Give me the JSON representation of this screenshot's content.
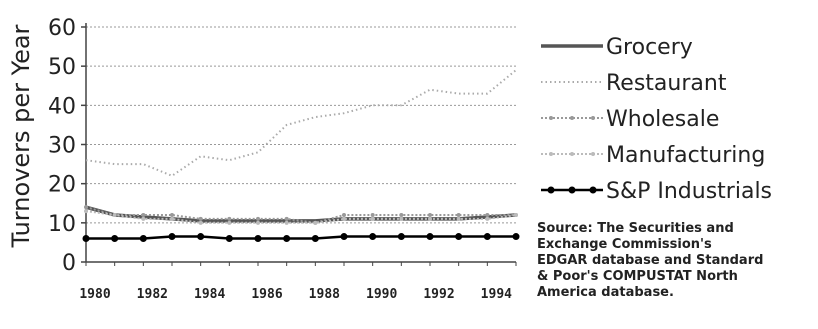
{
  "chart_data": {
    "type": "line",
    "ylabel": "Turnovers per Year",
    "xlabel": "",
    "ylim": [
      0,
      60
    ],
    "yticks": [
      0,
      10,
      20,
      30,
      40,
      50,
      60
    ],
    "xlim": [
      1980,
      1995
    ],
    "xticks": [
      1980,
      1982,
      1984,
      1986,
      1988,
      1990,
      1992,
      1994
    ],
    "x": [
      1980,
      1981,
      1982,
      1983,
      1984,
      1985,
      1986,
      1987,
      1988,
      1989,
      1990,
      1991,
      1992,
      1993,
      1994,
      1995
    ],
    "grid": "horizontal dotted",
    "legend_position": "right",
    "series": [
      {
        "name": "Grocery",
        "color": "#555555",
        "style": "solid-thick",
        "values": [
          14,
          12,
          11.5,
          11,
          10.5,
          10.5,
          10.5,
          10.5,
          10.5,
          11,
          11,
          11,
          11,
          11,
          11.5,
          12
        ]
      },
      {
        "name": "Restaurant",
        "color": "#aaaaaa",
        "style": "dotted",
        "values": [
          26,
          25,
          25,
          22,
          27,
          26,
          28,
          35,
          37,
          38,
          40,
          40,
          44,
          43,
          43,
          49
        ]
      },
      {
        "name": "Wholesale",
        "color": "#999999",
        "style": "dot-marker",
        "values": [
          14,
          12,
          12,
          12,
          11,
          11,
          11,
          11,
          10,
          12,
          12,
          12,
          12,
          12,
          12,
          12
        ]
      },
      {
        "name": "Manufacturing",
        "color": "#bbbbbb",
        "style": "dot-marker",
        "values": [
          13,
          12,
          11,
          11,
          10,
          10,
          10,
          10,
          10,
          11,
          11,
          11,
          11,
          11,
          11,
          12
        ]
      },
      {
        "name": "S&P Industrials",
        "color": "#000000",
        "style": "solid-marker",
        "values": [
          6,
          6,
          6,
          6.5,
          6.5,
          6,
          6,
          6,
          6,
          6.5,
          6.5,
          6.5,
          6.5,
          6.5,
          6.5,
          6.5
        ]
      }
    ],
    "source_note": "Source: The Securities and\nExchange Commission's\nEDGAR database and Standard\n& Poor's COMPUSTAT North\nAmerica database."
  }
}
